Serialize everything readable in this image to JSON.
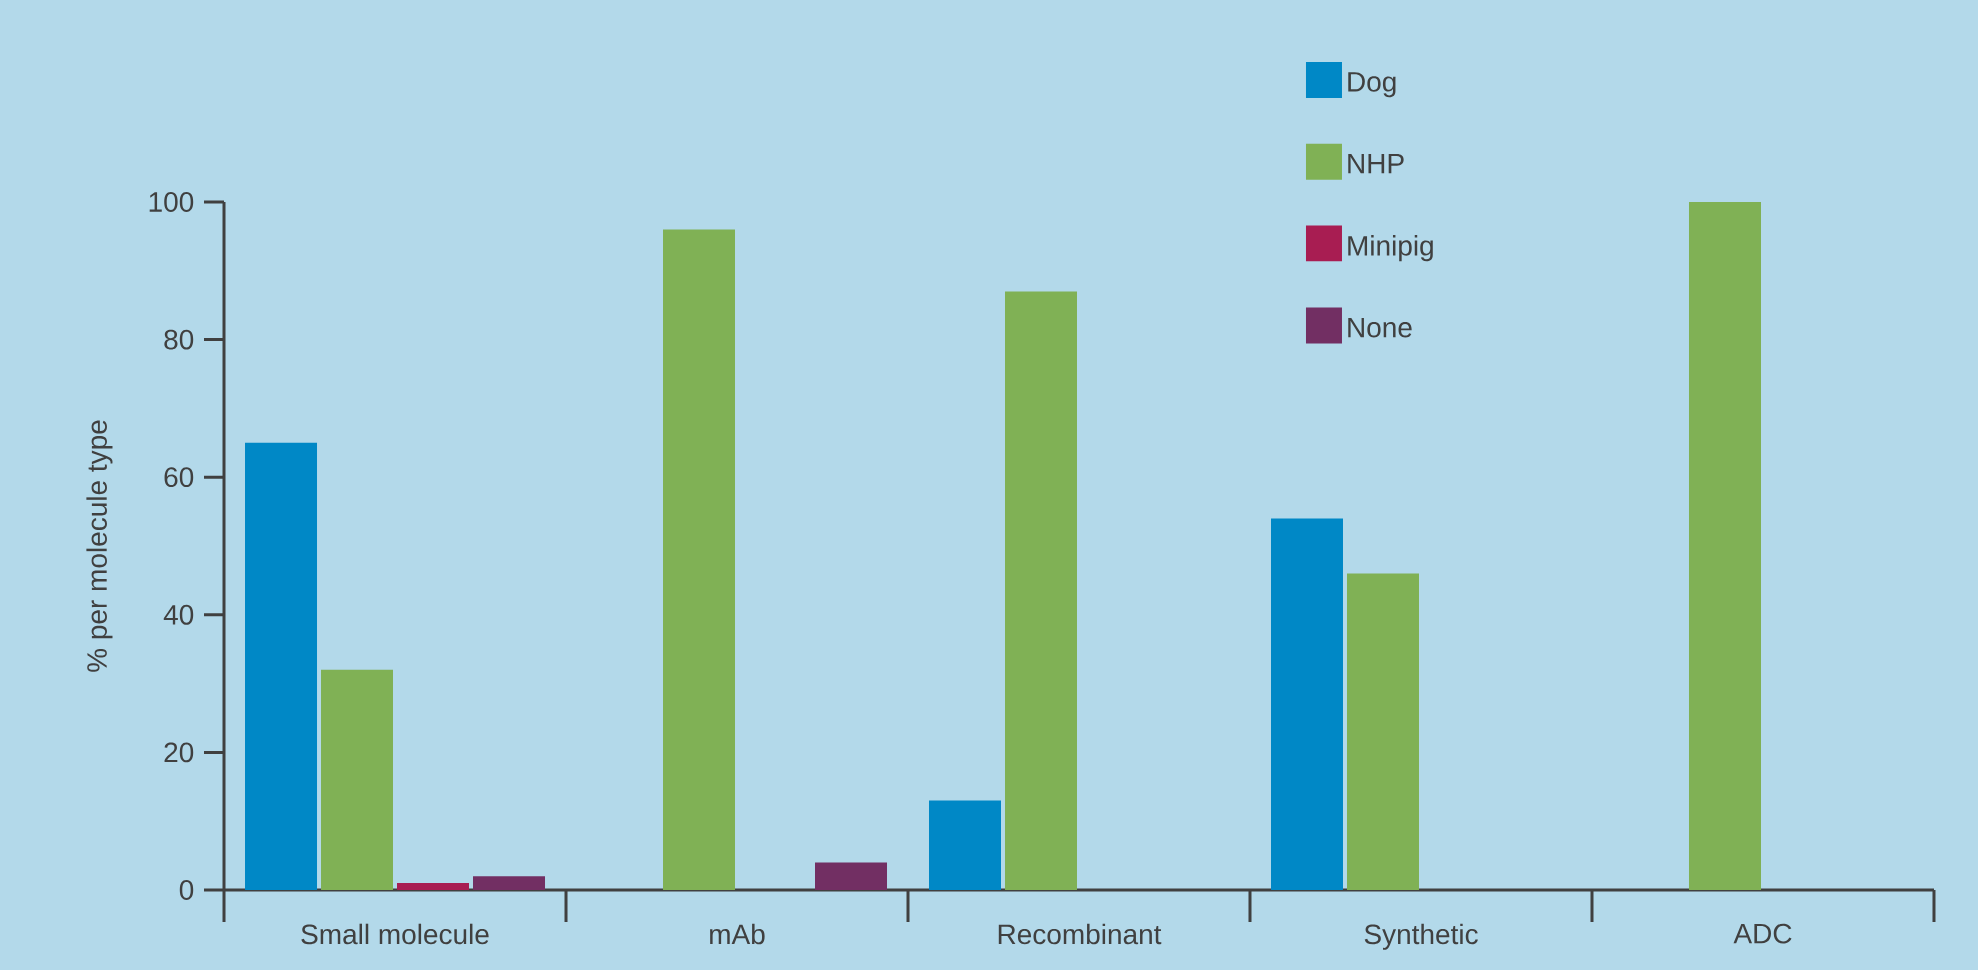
{
  "chart_data": {
    "type": "bar",
    "ylabel": "% per molecule type",
    "categories": [
      "Small molecule",
      "mAb",
      "Recombinant",
      "Synthetic",
      "ADC"
    ],
    "series": [
      {
        "name": "Dog",
        "color": "#0088c6",
        "values": [
          65,
          null,
          13,
          54,
          null
        ]
      },
      {
        "name": "NHP",
        "color": "#80b155",
        "values": [
          32,
          96,
          87,
          46,
          100
        ]
      },
      {
        "name": "Minipig",
        "color": "#a81d52",
        "values": [
          1,
          null,
          null,
          null,
          null
        ]
      },
      {
        "name": "None",
        "color": "#722f63",
        "values": [
          2,
          4,
          null,
          null,
          null
        ]
      }
    ],
    "ylim": [
      0,
      100
    ],
    "yticks": [
      0,
      20,
      40,
      60,
      80,
      100
    ],
    "grid": false,
    "legend": "top right"
  }
}
